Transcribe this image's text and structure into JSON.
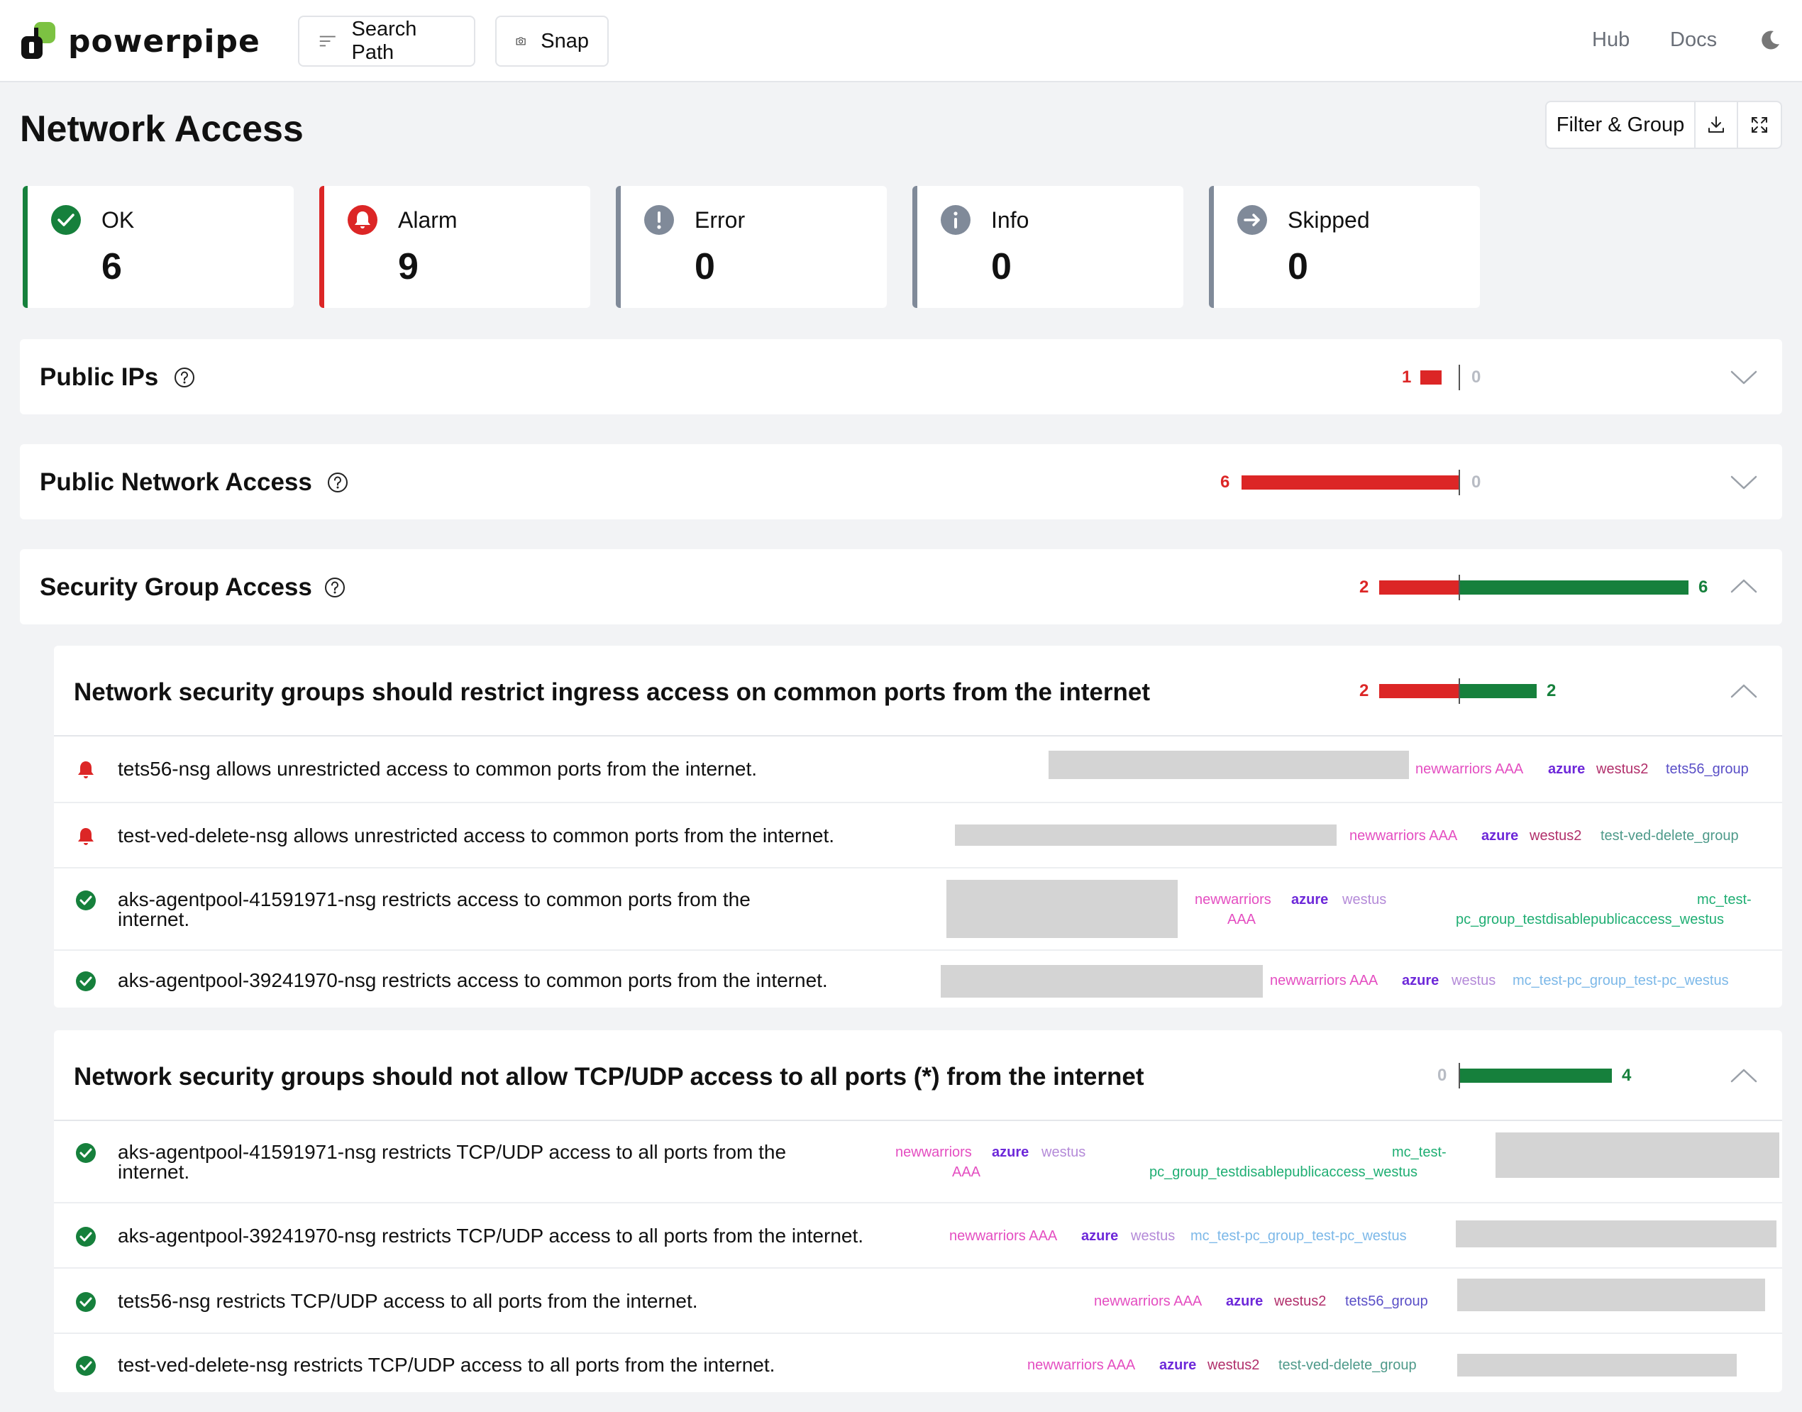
{
  "header": {
    "brand": "powerpipe",
    "search_path_label": "Search Path",
    "snap_label": "Snap",
    "hub_label": "Hub",
    "docs_label": "Docs"
  },
  "page": {
    "title": "Network Access",
    "filter_group_label": "Filter & Group"
  },
  "summary": {
    "ok": {
      "label": "OK",
      "value": "6"
    },
    "alarm": {
      "label": "Alarm",
      "value": "9"
    },
    "error": {
      "label": "Error",
      "value": "0"
    },
    "info": {
      "label": "Info",
      "value": "0"
    },
    "skipped": {
      "label": "Skipped",
      "value": "0"
    }
  },
  "groups": [
    {
      "title": "Public IPs",
      "alarm": "1",
      "ok": "0",
      "alarm_count": 1,
      "ok_count": 0
    },
    {
      "title": "Public Network Access",
      "alarm": "6",
      "ok": "0",
      "alarm_count": 6,
      "ok_count": 0
    },
    {
      "title": "Security Group Access",
      "alarm": "2",
      "ok": "6",
      "alarm_count": 2,
      "ok_count": 6
    }
  ],
  "controls": [
    {
      "title": "Network security groups should restrict ingress access on common ports from the internet",
      "alarm": "2",
      "ok": "2",
      "alarm_count": 2,
      "ok_count": 2,
      "rows": [
        {
          "status": "alarm",
          "text": "tets56-nsg allows unrestricted access to common ports from the internet.",
          "tags": {
            "sub": "newwarriors AAA",
            "cloud": "azure",
            "region": "westus2",
            "group": "tets56_group"
          }
        },
        {
          "status": "alarm",
          "text": "test-ved-delete-nsg allows unrestricted access to common ports from the internet.",
          "tags": {
            "sub": "newwarriors AAA",
            "cloud": "azure",
            "region": "westus2",
            "group": "test-ved-delete_group"
          }
        },
        {
          "status": "ok",
          "text1": "aks-agentpool-41591971-nsg restricts access to common ports from the",
          "text2": "internet.",
          "tags": {
            "sub1": "newwarriors",
            "sub2": "AAA",
            "cloud": "azure",
            "region": "westus",
            "group1": "mc_test-",
            "group2": "pc_group_testdisablepublicaccess_westus"
          }
        },
        {
          "status": "ok",
          "text": "aks-agentpool-39241970-nsg restricts access to common ports from the internet.",
          "tags": {
            "sub": "newwarriors AAA",
            "cloud": "azure",
            "region": "westus",
            "group": "mc_test-pc_group_test-pc_westus"
          }
        }
      ]
    },
    {
      "title": "Network security groups should not allow TCP/UDP access to all ports (*) from the internet",
      "alarm": "0",
      "ok": "4",
      "alarm_count": 0,
      "ok_count": 4,
      "rows": [
        {
          "status": "ok",
          "text1": "aks-agentpool-41591971-nsg restricts TCP/UDP access to all ports from the",
          "text2": "internet.",
          "tags": {
            "sub1": "newwarriors",
            "sub2": "AAA",
            "cloud": "azure",
            "region": "westus",
            "group1": "mc_test-",
            "group2": "pc_group_testdisablepublicaccess_westus"
          }
        },
        {
          "status": "ok",
          "text": "aks-agentpool-39241970-nsg restricts TCP/UDP access to all ports from the internet.",
          "tags": {
            "sub": "newwarriors AAA",
            "cloud": "azure",
            "region": "westus",
            "group": "mc_test-pc_group_test-pc_westus"
          }
        },
        {
          "status": "ok",
          "text": "tets56-nsg restricts TCP/UDP access to all ports from the internet.",
          "tags": {
            "sub": "newwarriors AAA",
            "cloud": "azure",
            "region": "westus2",
            "group": "tets56_group"
          }
        },
        {
          "status": "ok",
          "text": "test-ved-delete-nsg restricts TCP/UDP access to all ports from the internet.",
          "tags": {
            "sub": "newwarriors AAA",
            "cloud": "azure",
            "region": "westus2",
            "group": "test-ved-delete_group"
          }
        }
      ]
    }
  ],
  "colors": {
    "ok": "#16803c",
    "alarm": "#dc2626",
    "neutral": "#808a99"
  },
  "icons": [
    "logo-icon",
    "search-path-icon",
    "camera-icon",
    "moon-icon",
    "download-icon",
    "fullscreen-icon",
    "check-circle-icon",
    "bell-icon",
    "exclamation-icon",
    "info-icon",
    "arrow-right-icon",
    "help-icon",
    "chevron-down-icon",
    "chevron-up-icon"
  ]
}
